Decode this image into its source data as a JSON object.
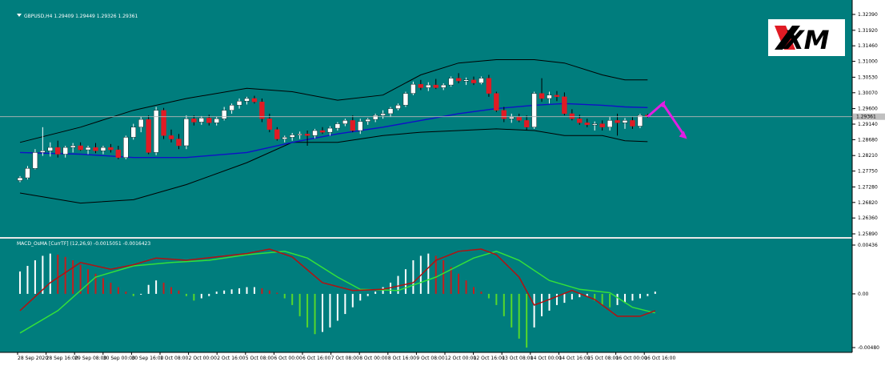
{
  "chart_data": {
    "type": "candlestick",
    "symbol_header": "GBPUSD,H4  1.29409 1.29449 1.29326 1.29361",
    "logo_text": "XM",
    "price_axis": {
      "ylim": [
        1.2589,
        1.3239
      ],
      "ticks": [
        "1.32390",
        "1.31920",
        "1.31460",
        "1.31000",
        "1.30530",
        "1.30070",
        "1.29600",
        "1.29140",
        "1.28680",
        "1.28210",
        "1.27750",
        "1.27280",
        "1.26820",
        "1.26360",
        "1.25890"
      ],
      "current_price_label": "1.29361",
      "current_price": 1.29361
    },
    "time_axis": {
      "labels": [
        "28 Sep 2020",
        "28 Sep 16:00",
        "29 Sep 08:00",
        "30 Sep 00:00",
        "30 Sep 16:00",
        "1 Oct 08:00",
        "2 Oct 00:00",
        "2 Oct 16:00",
        "5 Oct 08:00",
        "6 Oct 00:00",
        "6 Oct 16:00",
        "7 Oct 08:00",
        "8 Oct 00:00",
        "8 Oct 16:00",
        "9 Oct 08:00",
        "12 Oct 00:00",
        "12 Oct 16:00",
        "13 Oct 08:00",
        "14 Oct 00:00",
        "14 Oct 16:00",
        "15 Oct 08:00",
        "16 Oct 00:00",
        "16 Oct 16:00"
      ]
    },
    "candles": [
      {
        "o": 1.2747,
        "h": 1.276,
        "l": 1.2742,
        "c": 1.2755
      },
      {
        "o": 1.2755,
        "h": 1.279,
        "l": 1.275,
        "c": 1.2783
      },
      {
        "o": 1.2783,
        "h": 1.284,
        "l": 1.278,
        "c": 1.283
      },
      {
        "o": 1.283,
        "h": 1.2905,
        "l": 1.282,
        "c": 1.2835
      },
      {
        "o": 1.2835,
        "h": 1.286,
        "l": 1.2818,
        "c": 1.2845
      },
      {
        "o": 1.2845,
        "h": 1.2865,
        "l": 1.2815,
        "c": 1.2825
      },
      {
        "o": 1.2825,
        "h": 1.285,
        "l": 1.2815,
        "c": 1.2845
      },
      {
        "o": 1.2845,
        "h": 1.2858,
        "l": 1.283,
        "c": 1.285
      },
      {
        "o": 1.285,
        "h": 1.286,
        "l": 1.2835,
        "c": 1.2838
      },
      {
        "o": 1.2838,
        "h": 1.285,
        "l": 1.2825,
        "c": 1.2845
      },
      {
        "o": 1.2845,
        "h": 1.2858,
        "l": 1.2828,
        "c": 1.2835
      },
      {
        "o": 1.2835,
        "h": 1.285,
        "l": 1.2825,
        "c": 1.2845
      },
      {
        "o": 1.2845,
        "h": 1.2855,
        "l": 1.283,
        "c": 1.2838
      },
      {
        "o": 1.2838,
        "h": 1.285,
        "l": 1.281,
        "c": 1.2815
      },
      {
        "o": 1.2815,
        "h": 1.288,
        "l": 1.281,
        "c": 1.2875
      },
      {
        "o": 1.2875,
        "h": 1.2915,
        "l": 1.2868,
        "c": 1.2905
      },
      {
        "o": 1.2905,
        "h": 1.2935,
        "l": 1.289,
        "c": 1.2928
      },
      {
        "o": 1.2928,
        "h": 1.294,
        "l": 1.2825,
        "c": 1.283
      },
      {
        "o": 1.283,
        "h": 1.2965,
        "l": 1.2822,
        "c": 1.2955
      },
      {
        "o": 1.2955,
        "h": 1.2962,
        "l": 1.287,
        "c": 1.288
      },
      {
        "o": 1.288,
        "h": 1.2898,
        "l": 1.286,
        "c": 1.287
      },
      {
        "o": 1.287,
        "h": 1.2885,
        "l": 1.284,
        "c": 1.285
      },
      {
        "o": 1.285,
        "h": 1.294,
        "l": 1.284,
        "c": 1.293
      },
      {
        "o": 1.293,
        "h": 1.294,
        "l": 1.291,
        "c": 1.292
      },
      {
        "o": 1.292,
        "h": 1.2938,
        "l": 1.2912,
        "c": 1.2932
      },
      {
        "o": 1.2932,
        "h": 1.2942,
        "l": 1.291,
        "c": 1.2918
      },
      {
        "o": 1.2918,
        "h": 1.2935,
        "l": 1.291,
        "c": 1.293
      },
      {
        "o": 1.293,
        "h": 1.2965,
        "l": 1.2925,
        "c": 1.2955
      },
      {
        "o": 1.2955,
        "h": 1.2975,
        "l": 1.2945,
        "c": 1.297
      },
      {
        "o": 1.297,
        "h": 1.299,
        "l": 1.296,
        "c": 1.2982
      },
      {
        "o": 1.2982,
        "h": 1.2995,
        "l": 1.2972,
        "c": 1.299
      },
      {
        "o": 1.299,
        "h": 1.2998,
        "l": 1.2975,
        "c": 1.298
      },
      {
        "o": 1.298,
        "h": 1.299,
        "l": 1.292,
        "c": 1.293
      },
      {
        "o": 1.293,
        "h": 1.2945,
        "l": 1.289,
        "c": 1.2898
      },
      {
        "o": 1.2898,
        "h": 1.2905,
        "l": 1.2865,
        "c": 1.287
      },
      {
        "o": 1.287,
        "h": 1.288,
        "l": 1.286,
        "c": 1.2875
      },
      {
        "o": 1.2875,
        "h": 1.2888,
        "l": 1.2865,
        "c": 1.2882
      },
      {
        "o": 1.2882,
        "h": 1.2892,
        "l": 1.287,
        "c": 1.2885
      },
      {
        "o": 1.2885,
        "h": 1.2895,
        "l": 1.285,
        "c": 1.288
      },
      {
        "o": 1.288,
        "h": 1.29,
        "l": 1.2872,
        "c": 1.2895
      },
      {
        "o": 1.2895,
        "h": 1.2905,
        "l": 1.2885,
        "c": 1.289
      },
      {
        "o": 1.289,
        "h": 1.2908,
        "l": 1.288,
        "c": 1.2902
      },
      {
        "o": 1.2902,
        "h": 1.292,
        "l": 1.2895,
        "c": 1.2915
      },
      {
        "o": 1.2915,
        "h": 1.293,
        "l": 1.2908,
        "c": 1.2925
      },
      {
        "o": 1.2925,
        "h": 1.294,
        "l": 1.289,
        "c": 1.2895
      },
      {
        "o": 1.2895,
        "h": 1.293,
        "l": 1.2885,
        "c": 1.2922
      },
      {
        "o": 1.2922,
        "h": 1.2932,
        "l": 1.2912,
        "c": 1.2928
      },
      {
        "o": 1.2928,
        "h": 1.2945,
        "l": 1.292,
        "c": 1.294
      },
      {
        "o": 1.294,
        "h": 1.2955,
        "l": 1.293,
        "c": 1.2945
      },
      {
        "o": 1.2945,
        "h": 1.2965,
        "l": 1.2935,
        "c": 1.296
      },
      {
        "o": 1.296,
        "h": 1.2975,
        "l": 1.2955,
        "c": 1.297
      },
      {
        "o": 1.297,
        "h": 1.301,
        "l": 1.2965,
        "c": 1.3005
      },
      {
        "o": 1.3005,
        "h": 1.304,
        "l": 1.3,
        "c": 1.3032
      },
      {
        "o": 1.3032,
        "h": 1.3045,
        "l": 1.3015,
        "c": 1.3022
      },
      {
        "o": 1.3022,
        "h": 1.3038,
        "l": 1.3012,
        "c": 1.303
      },
      {
        "o": 1.303,
        "h": 1.3048,
        "l": 1.3018,
        "c": 1.3022
      },
      {
        "o": 1.3022,
        "h": 1.3035,
        "l": 1.3015,
        "c": 1.303
      },
      {
        "o": 1.303,
        "h": 1.3055,
        "l": 1.3025,
        "c": 1.305
      },
      {
        "o": 1.305,
        "h": 1.3065,
        "l": 1.3035,
        "c": 1.3042
      },
      {
        "o": 1.3042,
        "h": 1.3052,
        "l": 1.303,
        "c": 1.3045
      },
      {
        "o": 1.3045,
        "h": 1.3055,
        "l": 1.303,
        "c": 1.3036
      },
      {
        "o": 1.3036,
        "h": 1.3055,
        "l": 1.3032,
        "c": 1.305
      },
      {
        "o": 1.305,
        "h": 1.306,
        "l": 1.2995,
        "c": 1.3005
      },
      {
        "o": 1.3005,
        "h": 1.301,
        "l": 1.295,
        "c": 1.2955
      },
      {
        "o": 1.2955,
        "h": 1.2965,
        "l": 1.292,
        "c": 1.293
      },
      {
        "o": 1.293,
        "h": 1.2945,
        "l": 1.2918,
        "c": 1.2935
      },
      {
        "o": 1.2935,
        "h": 1.2945,
        "l": 1.292,
        "c": 1.2925
      },
      {
        "o": 1.2925,
        "h": 1.294,
        "l": 1.2895,
        "c": 1.2905
      },
      {
        "o": 1.2905,
        "h": 1.301,
        "l": 1.29,
        "c": 1.3005
      },
      {
        "o": 1.3005,
        "h": 1.305,
        "l": 1.298,
        "c": 1.299
      },
      {
        "o": 1.299,
        "h": 1.301,
        "l": 1.2975,
        "c": 1.3
      },
      {
        "o": 1.3,
        "h": 1.3012,
        "l": 1.2982,
        "c": 1.2995
      },
      {
        "o": 1.2995,
        "h": 1.3008,
        "l": 1.294,
        "c": 1.2945
      },
      {
        "o": 1.2945,
        "h": 1.2958,
        "l": 1.2925,
        "c": 1.293
      },
      {
        "o": 1.293,
        "h": 1.2942,
        "l": 1.2912,
        "c": 1.2918
      },
      {
        "o": 1.2918,
        "h": 1.293,
        "l": 1.2905,
        "c": 1.2912
      },
      {
        "o": 1.2912,
        "h": 1.2922,
        "l": 1.2895,
        "c": 1.2915
      },
      {
        "o": 1.2915,
        "h": 1.2925,
        "l": 1.2895,
        "c": 1.2905
      },
      {
        "o": 1.2905,
        "h": 1.2935,
        "l": 1.2895,
        "c": 1.2925
      },
      {
        "o": 1.2925,
        "h": 1.2945,
        "l": 1.288,
        "c": 1.2918
      },
      {
        "o": 1.2918,
        "h": 1.2932,
        "l": 1.29,
        "c": 1.2925
      },
      {
        "o": 1.2925,
        "h": 1.2935,
        "l": 1.29,
        "c": 1.2908
      },
      {
        "o": 1.2908,
        "h": 1.2945,
        "l": 1.2902,
        "c": 1.294
      },
      {
        "o": 1.2941,
        "h": 1.2945,
        "l": 1.2933,
        "c": 1.2936
      }
    ],
    "bollinger_upper": [
      {
        "i": 0,
        "v": 1.286
      },
      {
        "i": 8,
        "v": 1.2905
      },
      {
        "i": 15,
        "v": 1.2955
      },
      {
        "i": 22,
        "v": 1.299
      },
      {
        "i": 30,
        "v": 1.302
      },
      {
        "i": 36,
        "v": 1.301
      },
      {
        "i": 42,
        "v": 1.2985
      },
      {
        "i": 48,
        "v": 1.3
      },
      {
        "i": 53,
        "v": 1.306
      },
      {
        "i": 58,
        "v": 1.3095
      },
      {
        "i": 63,
        "v": 1.3105
      },
      {
        "i": 68,
        "v": 1.3105
      },
      {
        "i": 72,
        "v": 1.3095
      },
      {
        "i": 77,
        "v": 1.306
      },
      {
        "i": 80,
        "v": 1.3045
      },
      {
        "i": 83,
        "v": 1.3045
      }
    ],
    "bollinger_mid": [
      {
        "i": 0,
        "v": 1.283
      },
      {
        "i": 8,
        "v": 1.2825
      },
      {
        "i": 15,
        "v": 1.2815
      },
      {
        "i": 22,
        "v": 1.2815
      },
      {
        "i": 30,
        "v": 1.283
      },
      {
        "i": 36,
        "v": 1.286
      },
      {
        "i": 42,
        "v": 1.2885
      },
      {
        "i": 48,
        "v": 1.2905
      },
      {
        "i": 53,
        "v": 1.2925
      },
      {
        "i": 58,
        "v": 1.2945
      },
      {
        "i": 63,
        "v": 1.296
      },
      {
        "i": 68,
        "v": 1.297
      },
      {
        "i": 72,
        "v": 1.2975
      },
      {
        "i": 77,
        "v": 1.297
      },
      {
        "i": 80,
        "v": 1.2965
      },
      {
        "i": 83,
        "v": 1.2963
      }
    ],
    "bollinger_lower": [
      {
        "i": 0,
        "v": 1.271
      },
      {
        "i": 8,
        "v": 1.268
      },
      {
        "i": 15,
        "v": 1.269
      },
      {
        "i": 22,
        "v": 1.2735
      },
      {
        "i": 30,
        "v": 1.28
      },
      {
        "i": 36,
        "v": 1.286
      },
      {
        "i": 42,
        "v": 1.286
      },
      {
        "i": 48,
        "v": 1.288
      },
      {
        "i": 53,
        "v": 1.289
      },
      {
        "i": 58,
        "v": 1.2895
      },
      {
        "i": 63,
        "v": 1.29
      },
      {
        "i": 68,
        "v": 1.2895
      },
      {
        "i": 72,
        "v": 1.288
      },
      {
        "i": 77,
        "v": 1.288
      },
      {
        "i": 80,
        "v": 1.2865
      },
      {
        "i": 83,
        "v": 1.2862
      }
    ],
    "forecast_arrow": {
      "color": "#e31ee3",
      "from_index": 83,
      "peak_index": 85,
      "peak_price": 1.2975,
      "end_index": 88,
      "end_price": 1.2875
    },
    "macd": {
      "label": "MACD_OsMA [CurrTF] (12,26,9) -0.0015051 -0.0016423",
      "ylim": [
        -0.0048,
        0.00436
      ],
      "ticks": [
        "0.00436",
        "0.00",
        "-0.00480"
      ],
      "histogram": [
        0.002,
        0.0025,
        0.003,
        0.0034,
        0.0036,
        0.0035,
        0.0033,
        0.003,
        0.0026,
        0.0022,
        0.0018,
        0.0014,
        0.001,
        0.0006,
        0.0002,
        -0.0002,
        0.0,
        0.0008,
        0.0012,
        0.001,
        0.0006,
        0.0003,
        -0.0002,
        -0.0006,
        -0.0004,
        -0.0002,
        0.0002,
        0.0003,
        0.0004,
        0.0005,
        0.0006,
        0.0006,
        0.0005,
        0.0003,
        0.0001,
        -0.0004,
        -0.001,
        -0.002,
        -0.003,
        -0.0036,
        -0.0034,
        -0.003,
        -0.0024,
        -0.0018,
        -0.0012,
        -0.0006,
        -0.0002,
        0.0002,
        0.0006,
        0.001,
        0.0016,
        0.0022,
        0.003,
        0.0034,
        0.0036,
        0.0034,
        0.003,
        0.0024,
        0.0018,
        0.0012,
        0.0006,
        0.0002,
        -0.0004,
        -0.001,
        -0.002,
        -0.003,
        -0.004,
        -0.0048,
        -0.003,
        -0.002,
        -0.0015,
        -0.001,
        -0.0008,
        -0.0005,
        -0.0003,
        -0.0002,
        -0.0006,
        -0.001,
        -0.0012,
        -0.001,
        -0.0008,
        -0.0006,
        -0.0004,
        -0.0002,
        0.0002
      ],
      "signal_line": [
        {
          "i": 0,
          "v": -0.0035
        },
        {
          "i": 5,
          "v": -0.0015
        },
        {
          "i": 10,
          "v": 0.0015
        },
        {
          "i": 15,
          "v": 0.0025
        },
        {
          "i": 20,
          "v": 0.0028
        },
        {
          "i": 25,
          "v": 0.003
        },
        {
          "i": 30,
          "v": 0.0035
        },
        {
          "i": 35,
          "v": 0.0038
        },
        {
          "i": 38,
          "v": 0.0032
        },
        {
          "i": 42,
          "v": 0.0015
        },
        {
          "i": 45,
          "v": 0.0004
        },
        {
          "i": 50,
          "v": 0.0003
        },
        {
          "i": 55,
          "v": 0.0015
        },
        {
          "i": 60,
          "v": 0.0032
        },
        {
          "i": 63,
          "v": 0.0038
        },
        {
          "i": 66,
          "v": 0.003
        },
        {
          "i": 70,
          "v": 0.0012
        },
        {
          "i": 74,
          "v": 0.0004
        },
        {
          "i": 78,
          "v": 0.0001
        },
        {
          "i": 81,
          "v": -0.0012
        },
        {
          "i": 84,
          "v": -0.0017
        }
      ],
      "macd_line": [
        {
          "i": 0,
          "v": -0.0015
        },
        {
          "i": 4,
          "v": 0.001
        },
        {
          "i": 8,
          "v": 0.0028
        },
        {
          "i": 12,
          "v": 0.0022
        },
        {
          "i": 15,
          "v": 0.0026
        },
        {
          "i": 18,
          "v": 0.0032
        },
        {
          "i": 22,
          "v": 0.003
        },
        {
          "i": 26,
          "v": 0.0033
        },
        {
          "i": 30,
          "v": 0.0036
        },
        {
          "i": 33,
          "v": 0.004
        },
        {
          "i": 36,
          "v": 0.0033
        },
        {
          "i": 40,
          "v": 0.001
        },
        {
          "i": 44,
          "v": 0.0003
        },
        {
          "i": 48,
          "v": 0.0004
        },
        {
          "i": 52,
          "v": 0.001
        },
        {
          "i": 55,
          "v": 0.003
        },
        {
          "i": 58,
          "v": 0.0038
        },
        {
          "i": 61,
          "v": 0.004
        },
        {
          "i": 63,
          "v": 0.0035
        },
        {
          "i": 66,
          "v": 0.0015
        },
        {
          "i": 68,
          "v": -0.001
        },
        {
          "i": 70,
          "v": -0.0005
        },
        {
          "i": 73,
          "v": 0.0003
        },
        {
          "i": 76,
          "v": -0.0005
        },
        {
          "i": 79,
          "v": -0.002
        },
        {
          "i": 82,
          "v": -0.002
        },
        {
          "i": 84,
          "v": -0.0015
        }
      ]
    },
    "colors": {
      "background": "#007d7d",
      "bull_candle": "#ffffff",
      "bear_candle": "#e01b24",
      "wick": "#000000",
      "bollinger_bands": "#000000",
      "bollinger_mid": "#1010c8",
      "macd_hist_up_rising": "#ffffff",
      "macd_hist_up_falling": "#c61d1d",
      "macd_hist_down_falling": "#56d82b",
      "macd_hist_down_rising": "#ffffff",
      "macd_line": "#b41010",
      "signal_line": "#33e03a",
      "axis_bg": "#ffffff",
      "axis_text": "#000000",
      "logo_bg": "#ffffff",
      "logo_x": "#e01b24",
      "logo_m": "#000000"
    }
  }
}
